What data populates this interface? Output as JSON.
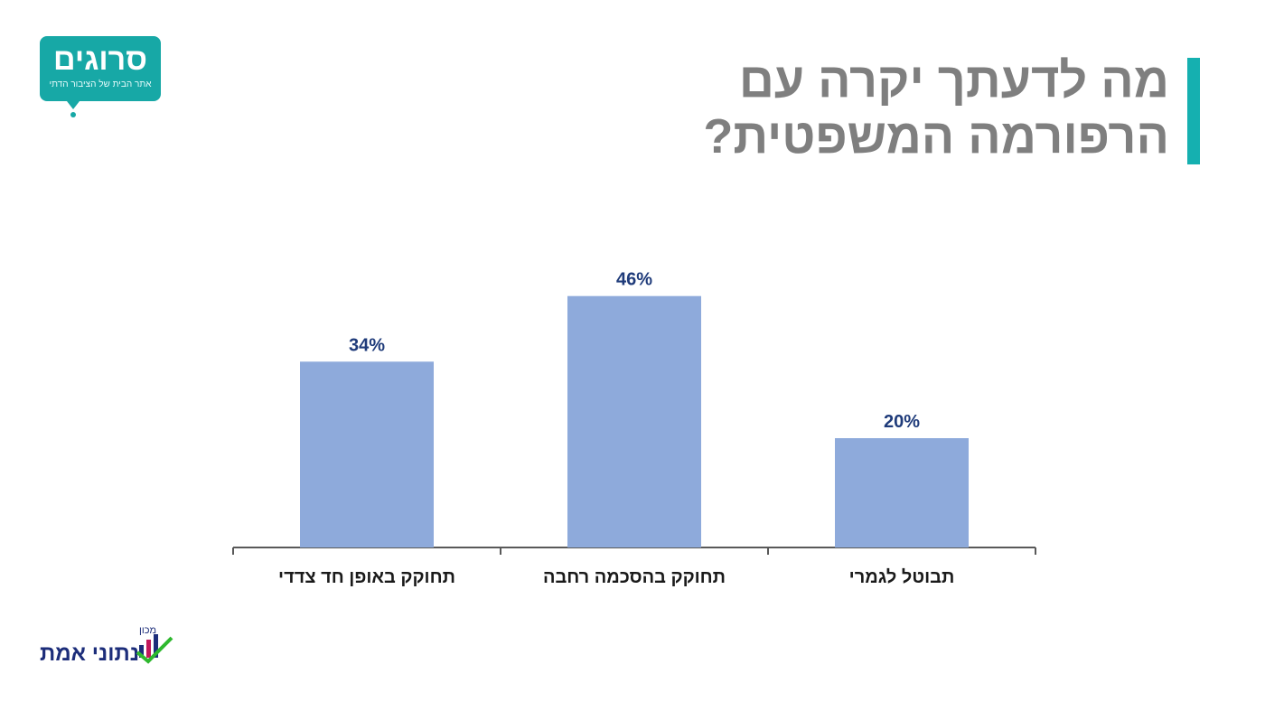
{
  "title": {
    "line1": "מה לדעתך יקרה עם",
    "line2": "הרפורמה המשפטית?"
  },
  "logo_top": {
    "name": "סרוגים",
    "tagline": "אתר הבית של הציבור הדתי"
  },
  "logo_bottom": {
    "small": "מכון",
    "name": "נתוני אמת"
  },
  "colors": {
    "bar": "#8eaadb",
    "value_label": "#1f3b7a",
    "accent": "#15b0b0",
    "title": "#7f7f7f"
  },
  "chart_data": {
    "type": "bar",
    "categories": [
      "תחוקק באופן חד צדדי",
      "תחוקק בהסכמה רחבה",
      "תבוטל לגמרי"
    ],
    "values": [
      34,
      46,
      20
    ],
    "value_labels": [
      "34%",
      "46%",
      "20%"
    ],
    "ylim": [
      0,
      50
    ],
    "grid": false,
    "legend": "none"
  }
}
